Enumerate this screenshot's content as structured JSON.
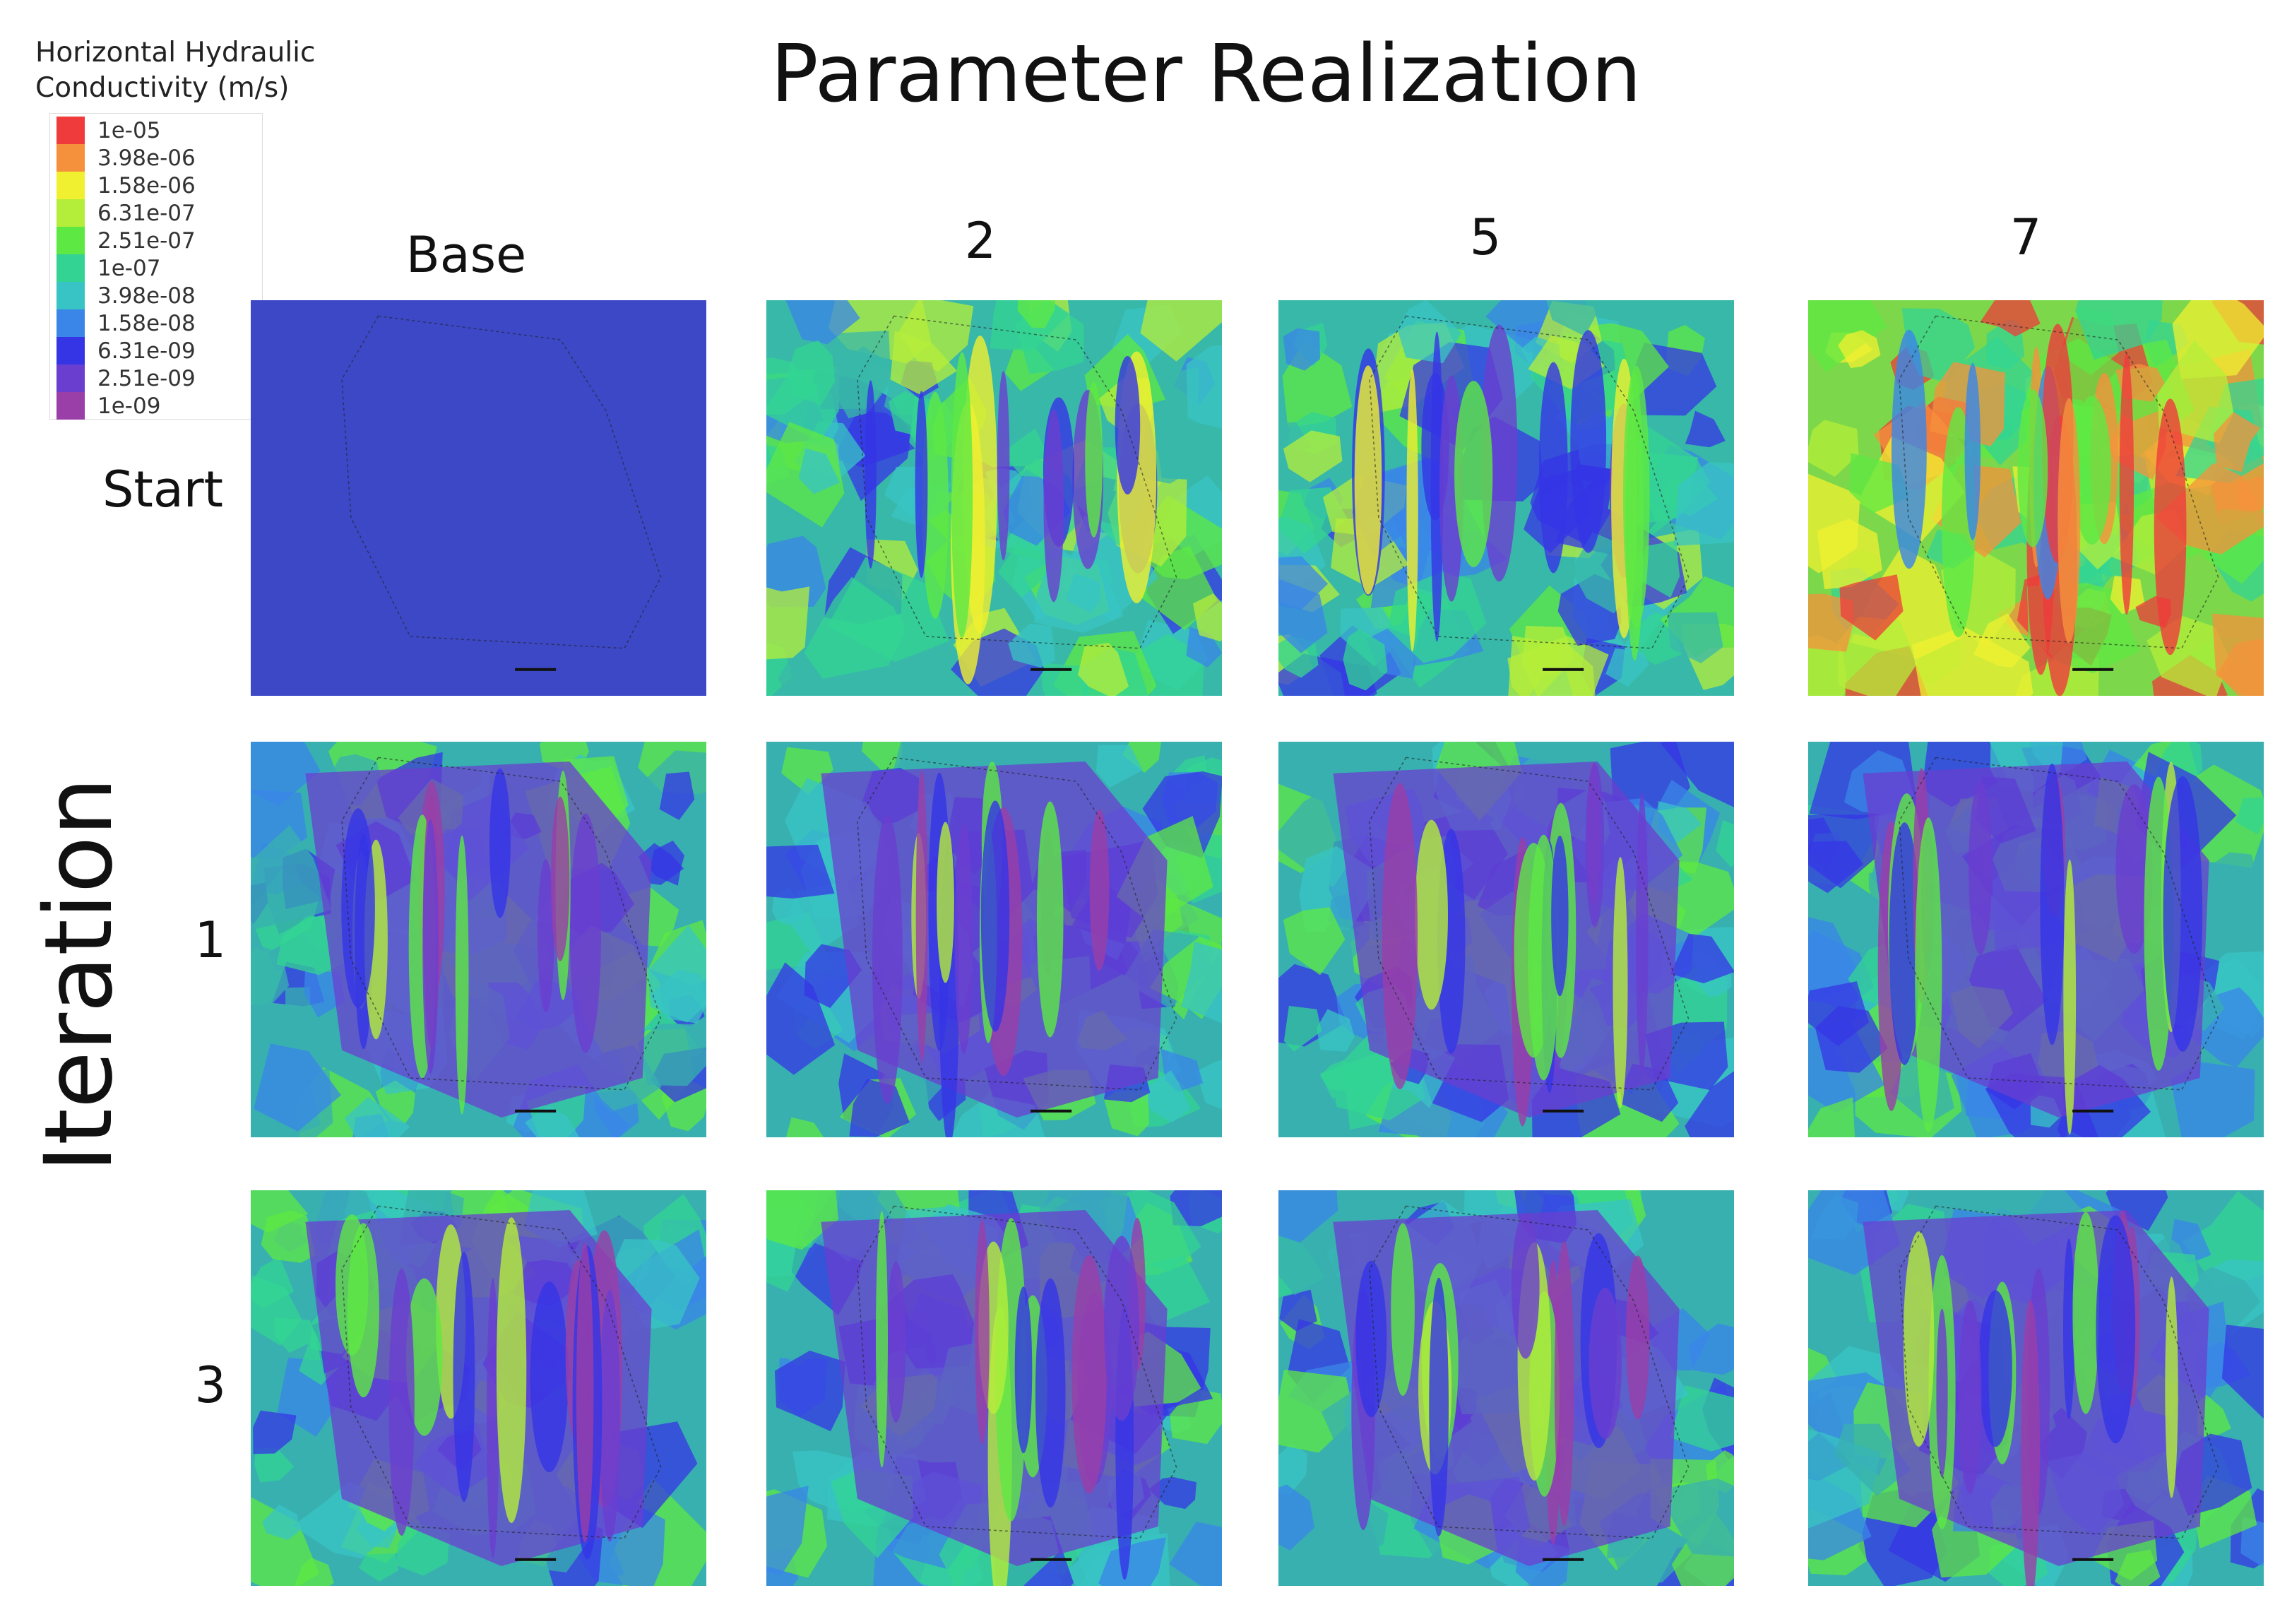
{
  "title": "Parameter Realization",
  "axis_label": "Iteration",
  "legend": {
    "title_line1": "Horizontal Hydraulic",
    "title_line2": "Conductivity (m/s)",
    "entries": [
      {
        "label": "1e-05",
        "color": "#ef3b3b"
      },
      {
        "label": "3.98e-06",
        "color": "#f5913c"
      },
      {
        "label": "1.58e-06",
        "color": "#f0f030"
      },
      {
        "label": "6.31e-07",
        "color": "#b5ee3a"
      },
      {
        "label": "2.51e-07",
        "color": "#5ee843"
      },
      {
        "label": "1e-07",
        "color": "#33d493"
      },
      {
        "label": "3.98e-08",
        "color": "#38c4c4"
      },
      {
        "label": "1.58e-08",
        "color": "#3a86e8"
      },
      {
        "label": "6.31e-09",
        "color": "#3535e6"
      },
      {
        "label": "2.51e-09",
        "color": "#6a3fd0"
      },
      {
        "label": "1e-09",
        "color": "#9a3fa8"
      }
    ]
  },
  "columns": [
    "Base",
    "2",
    "5",
    "7"
  ],
  "rows": [
    "Start",
    "1",
    "3"
  ],
  "panels": [
    {
      "row": "Start",
      "col": "Base",
      "background": "#3c48c6",
      "pattern": "uniform"
    },
    {
      "row": "Start",
      "col": "2",
      "background": "#38b8a8",
      "pattern": "mixed"
    },
    {
      "row": "Start",
      "col": "5",
      "background": "#38b8a8",
      "pattern": "mixed"
    },
    {
      "row": "Start",
      "col": "7",
      "background": "#7cd84a",
      "pattern": "high"
    },
    {
      "row": "1",
      "col": "Base",
      "background": "#38b0b0",
      "pattern": "low"
    },
    {
      "row": "1",
      "col": "2",
      "background": "#38b0b0",
      "pattern": "low"
    },
    {
      "row": "1",
      "col": "5",
      "background": "#38b0b0",
      "pattern": "low"
    },
    {
      "row": "1",
      "col": "7",
      "background": "#38b0b0",
      "pattern": "low"
    },
    {
      "row": "3",
      "col": "Base",
      "background": "#38b0b0",
      "pattern": "low"
    },
    {
      "row": "3",
      "col": "2",
      "background": "#38b0b0",
      "pattern": "low"
    },
    {
      "row": "3",
      "col": "5",
      "background": "#38b0b0",
      "pattern": "low"
    },
    {
      "row": "3",
      "col": "7",
      "background": "#38b0b0",
      "pattern": "low"
    }
  ]
}
